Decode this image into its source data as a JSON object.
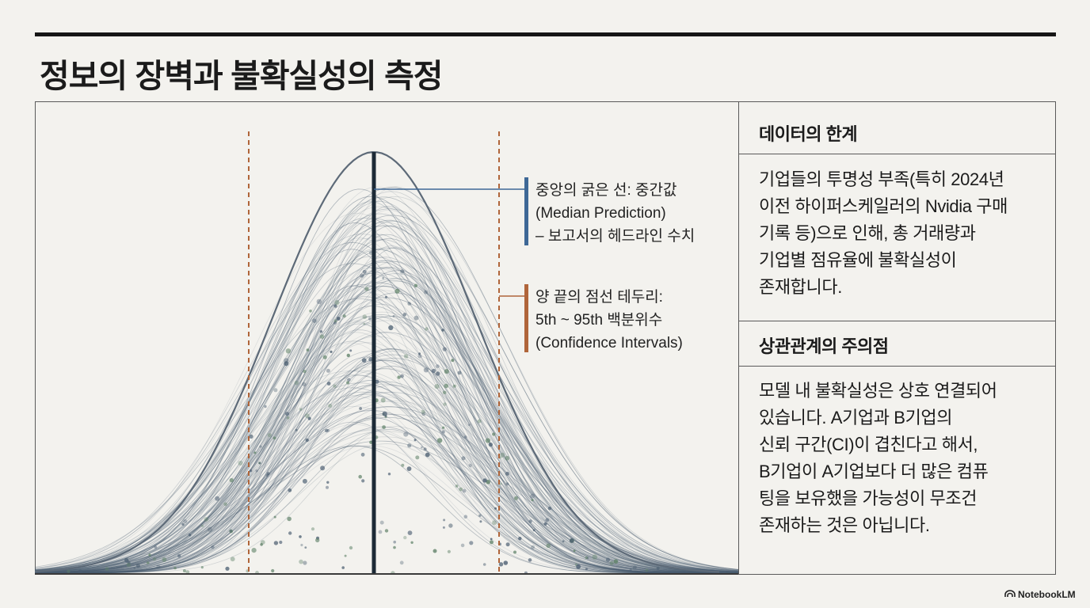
{
  "slide": {
    "title": "정보의 장벽과 불확실성의 측정"
  },
  "annotations": {
    "median": [
      "중앙의 굵은 선: 중간값",
      "(Median Prediction)",
      "– 보고서의 헤드라인 수치"
    ],
    "interval": [
      "양 끝의 점선 테두리:",
      "5th ~ 95th 백분위수",
      "(Confidence Intervals)"
    ]
  },
  "panel": {
    "section1": {
      "heading": "데이터의 한계",
      "lines": [
        "기업들의 투명성 부족(특히 2024년",
        "이전 하이퍼스케일러의 Nvidia 구매",
        "기록 등)으로 인해, 총 거래량과",
        "기업별 점유율에 불확실성이",
        "존재합니다."
      ]
    },
    "section2": {
      "heading": "상관관계의 주의점",
      "lines": [
        "모델 내 불확실성은 상호 연결되어",
        "있습니다. A기업과 B기업의",
        "신뢰 구간(CI)이 겹친다고 해서,",
        "B기업이 A기업보다 더 많은 컴퓨",
        "팅을 보유했을 가능성이 무조건",
        "존재하는 것은 아닙니다."
      ]
    }
  },
  "footer": {
    "brand": "NotebookLM"
  },
  "colors": {
    "median_line": "#1c2a36",
    "envelope": "#5d6a78",
    "samples": "#4a5d70",
    "dots": "#5f8268",
    "interval_dash": "#b0653a",
    "median_bar": "#3e6896",
    "interval_bar": "#b0653a"
  },
  "icons": {
    "logo": "notebooklm-icon"
  }
}
